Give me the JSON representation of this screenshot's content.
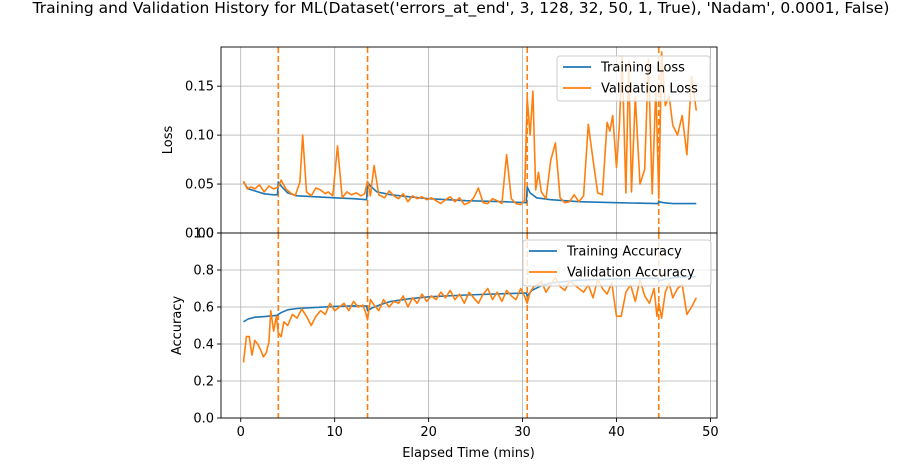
{
  "chart_data": {
    "type": "line",
    "title": "Training and Validation History for ML(Dataset('errors_at_end', 3, 128, 32, 50, 1, True), 'Nadam', 0.0001, False)",
    "xlabel": "Elapsed Time (mins)",
    "xlim": [
      -2.1,
      50.7
    ],
    "xticks": [
      0,
      10,
      20,
      30,
      40,
      50
    ],
    "xtick_labels": [
      "0",
      "10",
      "20",
      "30",
      "40",
      "50"
    ],
    "vlines": [
      4.0,
      13.5,
      30.5,
      44.5
    ],
    "colors": {
      "training": "#1f77b4",
      "validation": "#ff7f0e",
      "grid": "#b0b0b0"
    },
    "grid": true,
    "panels": [
      {
        "ylabel": "Loss",
        "ylim": [
          0.0,
          0.19
        ],
        "yticks": [
          0.0,
          0.05,
          0.1,
          0.15
        ],
        "ytick_labels": [
          "0.00",
          "0.05",
          "0.10",
          "0.15"
        ],
        "legend_position": "upper-right",
        "series": [
          {
            "name": "Training Loss",
            "color": "#1f77b4",
            "x": [
              0.3,
              0.8,
              1.5,
              2.5,
              3.5,
              3.9,
              4.0,
              4.3,
              5.0,
              6.0,
              8.0,
              10.0,
              12.0,
              13.4,
              13.5,
              13.8,
              14.5,
              16.0,
              18.0,
              20.0,
              24.0,
              28.0,
              30.4,
              30.5,
              30.8,
              31.5,
              33.0,
              36.0,
              40.0,
              44.4,
              44.5,
              45.0,
              46.0,
              47.0,
              48.5
            ],
            "y": [
              0.052,
              0.045,
              0.043,
              0.04,
              0.039,
              0.039,
              0.052,
              0.048,
              0.041,
              0.038,
              0.037,
              0.036,
              0.035,
              0.034,
              0.052,
              0.048,
              0.042,
              0.039,
              0.037,
              0.035,
              0.033,
              0.032,
              0.031,
              0.047,
              0.041,
              0.036,
              0.034,
              0.032,
              0.031,
              0.03,
              0.032,
              0.031,
              0.03,
              0.03,
              0.03
            ]
          },
          {
            "name": "Validation Loss",
            "color": "#ff7f0e",
            "x": [
              0.3,
              0.7,
              1.1,
              1.5,
              2.0,
              2.5,
              3.0,
              3.5,
              4.0,
              4.3,
              4.8,
              5.3,
              5.8,
              6.3,
              6.6,
              7.0,
              7.5,
              8.0,
              8.5,
              9.0,
              9.3,
              9.8,
              10.3,
              10.8,
              11.3,
              11.8,
              12.3,
              12.8,
              13.2,
              13.5,
              13.8,
              14.2,
              14.7,
              15.3,
              15.8,
              16.3,
              16.8,
              17.3,
              17.8,
              18.3,
              18.8,
              19.3,
              19.8,
              20.3,
              20.8,
              21.3,
              21.8,
              22.3,
              22.8,
              23.3,
              23.8,
              24.3,
              24.8,
              25.3,
              25.8,
              26.3,
              26.8,
              27.3,
              27.8,
              28.3,
              28.8,
              29.3,
              29.8,
              30.2,
              30.5,
              30.8,
              31.1,
              31.4,
              31.7,
              32.0,
              32.5,
              33.0,
              33.5,
              34.0,
              34.5,
              35.0,
              35.5,
              36.0,
              36.5,
              37.0,
              37.5,
              38.0,
              38.5,
              39.0,
              39.3,
              39.6,
              40.0,
              40.3,
              40.6,
              41.0,
              41.3,
              41.6,
              42.0,
              42.5,
              43.0,
              43.4,
              43.8,
              44.2,
              44.5,
              44.8,
              45.2,
              45.6,
              46.0,
              46.5,
              47.0,
              47.5,
              48.0,
              48.5
            ],
            "y": [
              0.053,
              0.045,
              0.047,
              0.045,
              0.049,
              0.042,
              0.048,
              0.045,
              0.047,
              0.054,
              0.045,
              0.041,
              0.038,
              0.052,
              0.1,
              0.042,
              0.038,
              0.046,
              0.044,
              0.04,
              0.042,
              0.038,
              0.089,
              0.036,
              0.042,
              0.039,
              0.041,
              0.038,
              0.04,
              0.053,
              0.038,
              0.069,
              0.039,
              0.036,
              0.043,
              0.038,
              0.035,
              0.04,
              0.032,
              0.038,
              0.035,
              0.037,
              0.034,
              0.036,
              0.033,
              0.03,
              0.034,
              0.037,
              0.032,
              0.036,
              0.029,
              0.031,
              0.036,
              0.046,
              0.031,
              0.03,
              0.035,
              0.033,
              0.03,
              0.08,
              0.035,
              0.03,
              0.029,
              0.033,
              0.138,
              0.1,
              0.145,
              0.044,
              0.062,
              0.042,
              0.035,
              0.074,
              0.092,
              0.036,
              0.031,
              0.032,
              0.039,
              0.032,
              0.038,
              0.111,
              0.075,
              0.041,
              0.039,
              0.113,
              0.104,
              0.12,
              0.067,
              0.108,
              0.18,
              0.041,
              0.175,
              0.042,
              0.139,
              0.05,
              0.065,
              0.178,
              0.04,
              0.15,
              0.035,
              0.185,
              0.13,
              0.14,
              0.11,
              0.1,
              0.12,
              0.08,
              0.16,
              0.125
            ]
          }
        ]
      },
      {
        "ylabel": "Accuracy",
        "ylim": [
          0.0,
          1.0
        ],
        "yticks": [
          0.0,
          0.2,
          0.4,
          0.6,
          0.8,
          1.0
        ],
        "ytick_labels": [
          "0.0",
          "0.2",
          "0.4",
          "0.6",
          "0.8",
          "1.0"
        ],
        "legend_position": "upper-right",
        "series": [
          {
            "name": "Training Accuracy",
            "color": "#1f77b4",
            "x": [
              0.3,
              0.8,
              1.5,
              2.5,
              3.5,
              3.9,
              4.0,
              4.3,
              5.0,
              6.0,
              8.0,
              10.0,
              12.0,
              13.4,
              13.5,
              14.0,
              15.0,
              16.0,
              18.0,
              20.0,
              24.0,
              28.0,
              30.4,
              30.5,
              31.0,
              32.0,
              33.0,
              36.0,
              40.0,
              44.4,
              44.5,
              45.0,
              46.0,
              47.0,
              48.5
            ],
            "y": [
              0.52,
              0.535,
              0.545,
              0.548,
              0.553,
              0.555,
              0.56,
              0.57,
              0.585,
              0.592,
              0.598,
              0.603,
              0.606,
              0.605,
              0.58,
              0.595,
              0.615,
              0.63,
              0.645,
              0.655,
              0.665,
              0.672,
              0.675,
              0.66,
              0.69,
              0.715,
              0.73,
              0.745,
              0.752,
              0.755,
              0.74,
              0.75,
              0.758,
              0.762,
              0.765
            ]
          },
          {
            "name": "Validation Accuracy",
            "color": "#ff7f0e",
            "x": [
              0.3,
              0.6,
              0.9,
              1.2,
              1.5,
              1.8,
              2.1,
              2.4,
              2.7,
              3.0,
              3.2,
              3.5,
              3.8,
              4.0,
              4.3,
              4.6,
              5.0,
              5.5,
              6.0,
              6.5,
              7.0,
              7.5,
              8.0,
              8.5,
              9.0,
              9.5,
              10.0,
              10.5,
              11.0,
              11.5,
              12.0,
              12.5,
              13.0,
              13.3,
              13.5,
              13.8,
              14.2,
              14.7,
              15.2,
              15.8,
              16.3,
              16.8,
              17.3,
              17.8,
              18.3,
              18.8,
              19.3,
              19.8,
              20.3,
              20.8,
              21.3,
              21.8,
              22.3,
              22.8,
              23.3,
              23.8,
              24.3,
              24.8,
              25.3,
              25.8,
              26.3,
              26.8,
              27.3,
              27.8,
              28.3,
              28.8,
              29.3,
              29.8,
              30.2,
              30.5,
              30.8,
              31.2,
              31.6,
              32.0,
              32.5,
              33.0,
              33.5,
              34.0,
              34.5,
              35.0,
              35.5,
              36.0,
              36.5,
              37.0,
              37.5,
              38.0,
              38.5,
              39.0,
              39.5,
              40.0,
              40.5,
              41.0,
              41.5,
              42.0,
              42.5,
              43.0,
              43.5,
              44.0,
              44.3,
              44.5,
              44.8,
              45.2,
              45.6,
              46.0,
              46.5,
              47.0,
              47.5,
              48.0,
              48.5
            ],
            "y": [
              0.3,
              0.44,
              0.44,
              0.34,
              0.42,
              0.4,
              0.37,
              0.33,
              0.35,
              0.41,
              0.58,
              0.47,
              0.55,
              0.46,
              0.44,
              0.52,
              0.5,
              0.56,
              0.54,
              0.59,
              0.55,
              0.5,
              0.55,
              0.58,
              0.56,
              0.62,
              0.58,
              0.6,
              0.62,
              0.58,
              0.63,
              0.6,
              0.61,
              0.57,
              0.53,
              0.64,
              0.61,
              0.58,
              0.64,
              0.6,
              0.63,
              0.62,
              0.66,
              0.6,
              0.65,
              0.62,
              0.67,
              0.63,
              0.66,
              0.64,
              0.68,
              0.65,
              0.69,
              0.64,
              0.67,
              0.62,
              0.68,
              0.65,
              0.62,
              0.67,
              0.7,
              0.64,
              0.68,
              0.63,
              0.69,
              0.66,
              0.64,
              0.7,
              0.66,
              0.62,
              0.68,
              0.71,
              0.72,
              0.74,
              0.68,
              0.72,
              0.76,
              0.71,
              0.69,
              0.74,
              0.72,
              0.7,
              0.68,
              0.72,
              0.65,
              0.75,
              0.7,
              0.67,
              0.73,
              0.55,
              0.55,
              0.68,
              0.72,
              0.63,
              0.75,
              0.66,
              0.62,
              0.7,
              0.55,
              0.62,
              0.54,
              0.68,
              0.73,
              0.65,
              0.7,
              0.72,
              0.56,
              0.6,
              0.65
            ]
          }
        ]
      }
    ]
  }
}
